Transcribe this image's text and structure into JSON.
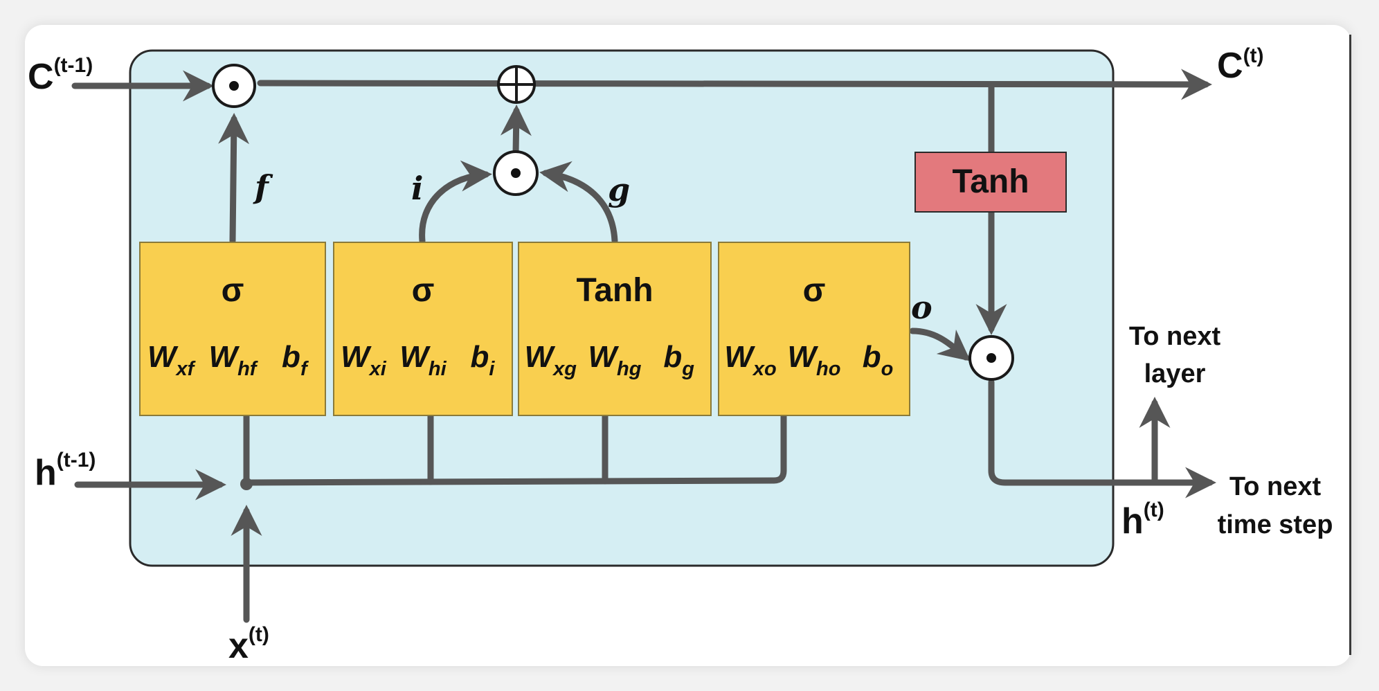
{
  "labels": {
    "c_prev": "C",
    "c_prev_sup": "(t-1)",
    "c_next": "C",
    "c_next_sup": "(t)",
    "h_prev": "h",
    "h_prev_sup": "(t-1)",
    "h_next": "h",
    "h_next_sup": "(t)",
    "x": "x",
    "x_sup": "(t)",
    "to_next_layer_1": "To next",
    "to_next_layer_2": "layer",
    "to_next_step_1": "To next",
    "to_next_step_2": "time step"
  },
  "signals": {
    "f": "f",
    "i": "i",
    "g": "g",
    "o": "o"
  },
  "cell_tanh": "Tanh",
  "gates": [
    {
      "act": "σ",
      "w1": "W",
      "w1_sub": "xf",
      "w2": "W",
      "w2_sub": "hf",
      "b": "b",
      "b_sub": "f"
    },
    {
      "act": "σ",
      "w1": "W",
      "w1_sub": "xi",
      "w2": "W",
      "w2_sub": "hi",
      "b": "b",
      "b_sub": "i"
    },
    {
      "act": "Tanh",
      "w1": "W",
      "w1_sub": "xg",
      "w2": "W",
      "w2_sub": "hg",
      "b": "b",
      "b_sub": "g"
    },
    {
      "act": "σ",
      "w1": "W",
      "w1_sub": "xo",
      "w2": "W",
      "w2_sub": "ho",
      "b": "b",
      "b_sub": "o"
    }
  ],
  "colors": {
    "cell_bg": "#d5eef3",
    "gate_bg": "#f9cf4f",
    "tanh_bg": "#e3797d",
    "line": "#565656",
    "background": "#ffffff"
  }
}
